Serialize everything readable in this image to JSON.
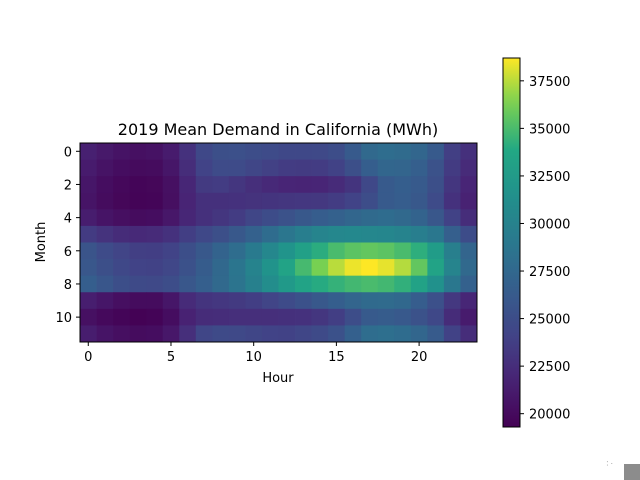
{
  "chart_data": {
    "type": "heatmap",
    "title": "2019 Mean Demand in California (MWh)",
    "xlabel": "Hour",
    "ylabel": "Month",
    "x_ticks": [
      0,
      5,
      10,
      15,
      20
    ],
    "y_ticks": [
      0,
      2,
      4,
      6,
      8,
      10
    ],
    "x_range": [
      0,
      23
    ],
    "y_range": [
      0,
      11
    ],
    "colormap": "viridis",
    "colorbar": {
      "min": 19300,
      "max": 38700,
      "ticks": [
        20000,
        22500,
        25000,
        27500,
        30000,
        32500,
        35000,
        37500
      ],
      "tick_labels": [
        "20000",
        "22500",
        "25000",
        "27500",
        "30000",
        "32500",
        "35000",
        "37500"
      ]
    },
    "values": [
      [
        21500,
        21000,
        20600,
        20400,
        20500,
        21200,
        22800,
        24500,
        25200,
        25300,
        25000,
        24800,
        24500,
        24500,
        24600,
        25000,
        26200,
        27600,
        28000,
        27800,
        27300,
        26200,
        23800,
        22700
      ],
      [
        21200,
        20600,
        20200,
        20000,
        20100,
        20800,
        22500,
        24100,
        24800,
        24800,
        24300,
        23900,
        23600,
        23500,
        23600,
        24000,
        25200,
        26600,
        27300,
        27200,
        26700,
        25500,
        23500,
        22300
      ],
      [
        20800,
        20200,
        19800,
        19600,
        19700,
        20400,
        22000,
        23400,
        23600,
        23100,
        22600,
        22200,
        21900,
        21800,
        21900,
        22300,
        23000,
        24500,
        26200,
        26600,
        26200,
        25200,
        23100,
        21900
      ],
      [
        20700,
        20100,
        19700,
        19500,
        19600,
        20300,
        21800,
        22700,
        22700,
        22800,
        22900,
        23000,
        23100,
        23200,
        23300,
        23600,
        24100,
        25000,
        26200,
        26500,
        26000,
        24800,
        22800,
        21700
      ],
      [
        21300,
        20700,
        20300,
        20100,
        20200,
        20900,
        22000,
        22700,
        23100,
        23600,
        24300,
        24900,
        25500,
        26000,
        26500,
        26900,
        27300,
        27700,
        27900,
        27600,
        27000,
        25900,
        24000,
        22500
      ],
      [
        23500,
        22900,
        22400,
        22200,
        22300,
        22800,
        23700,
        24500,
        25200,
        26000,
        26900,
        27900,
        28800,
        29600,
        30200,
        30500,
        30600,
        30500,
        30400,
        30100,
        29600,
        28900,
        26700,
        24900
      ],
      [
        25600,
        24800,
        24200,
        23800,
        23700,
        24100,
        25100,
        26000,
        27000,
        28000,
        29200,
        30500,
        31800,
        33000,
        34100,
        35000,
        35500,
        35700,
        35500,
        35000,
        34200,
        32600,
        29700,
        27200
      ],
      [
        25900,
        25200,
        24500,
        24100,
        24000,
        24400,
        25400,
        26400,
        27500,
        28700,
        30100,
        31700,
        33300,
        34900,
        36300,
        37500,
        38400,
        38700,
        38300,
        37400,
        35700,
        33300,
        30200,
        27600
      ],
      [
        26600,
        25800,
        25100,
        24700,
        24600,
        25000,
        25900,
        26700,
        27600,
        28600,
        29800,
        31100,
        32300,
        33300,
        34000,
        34400,
        34800,
        35000,
        34800,
        34300,
        33200,
        31500,
        28900,
        26900
      ],
      [
        21400,
        20800,
        20300,
        20100,
        20100,
        20800,
        22300,
        23000,
        23200,
        23400,
        23700,
        24200,
        24800,
        25400,
        26000,
        26600,
        27200,
        27700,
        27800,
        27500,
        26500,
        25300,
        23300,
        22000
      ],
      [
        20400,
        19900,
        19600,
        19400,
        19500,
        20200,
        21700,
        22400,
        22500,
        22600,
        22600,
        22600,
        22700,
        22800,
        23100,
        23700,
        25000,
        26200,
        26400,
        26100,
        25500,
        24500,
        22400,
        21200
      ],
      [
        21300,
        20700,
        20300,
        20100,
        20200,
        20900,
        22600,
        24300,
        24700,
        24600,
        24300,
        24100,
        24000,
        24300,
        24700,
        25400,
        26800,
        28000,
        28200,
        27900,
        27300,
        26300,
        24000,
        22500
      ]
    ]
  },
  "widget": {
    "dots": "⠅⠂"
  }
}
